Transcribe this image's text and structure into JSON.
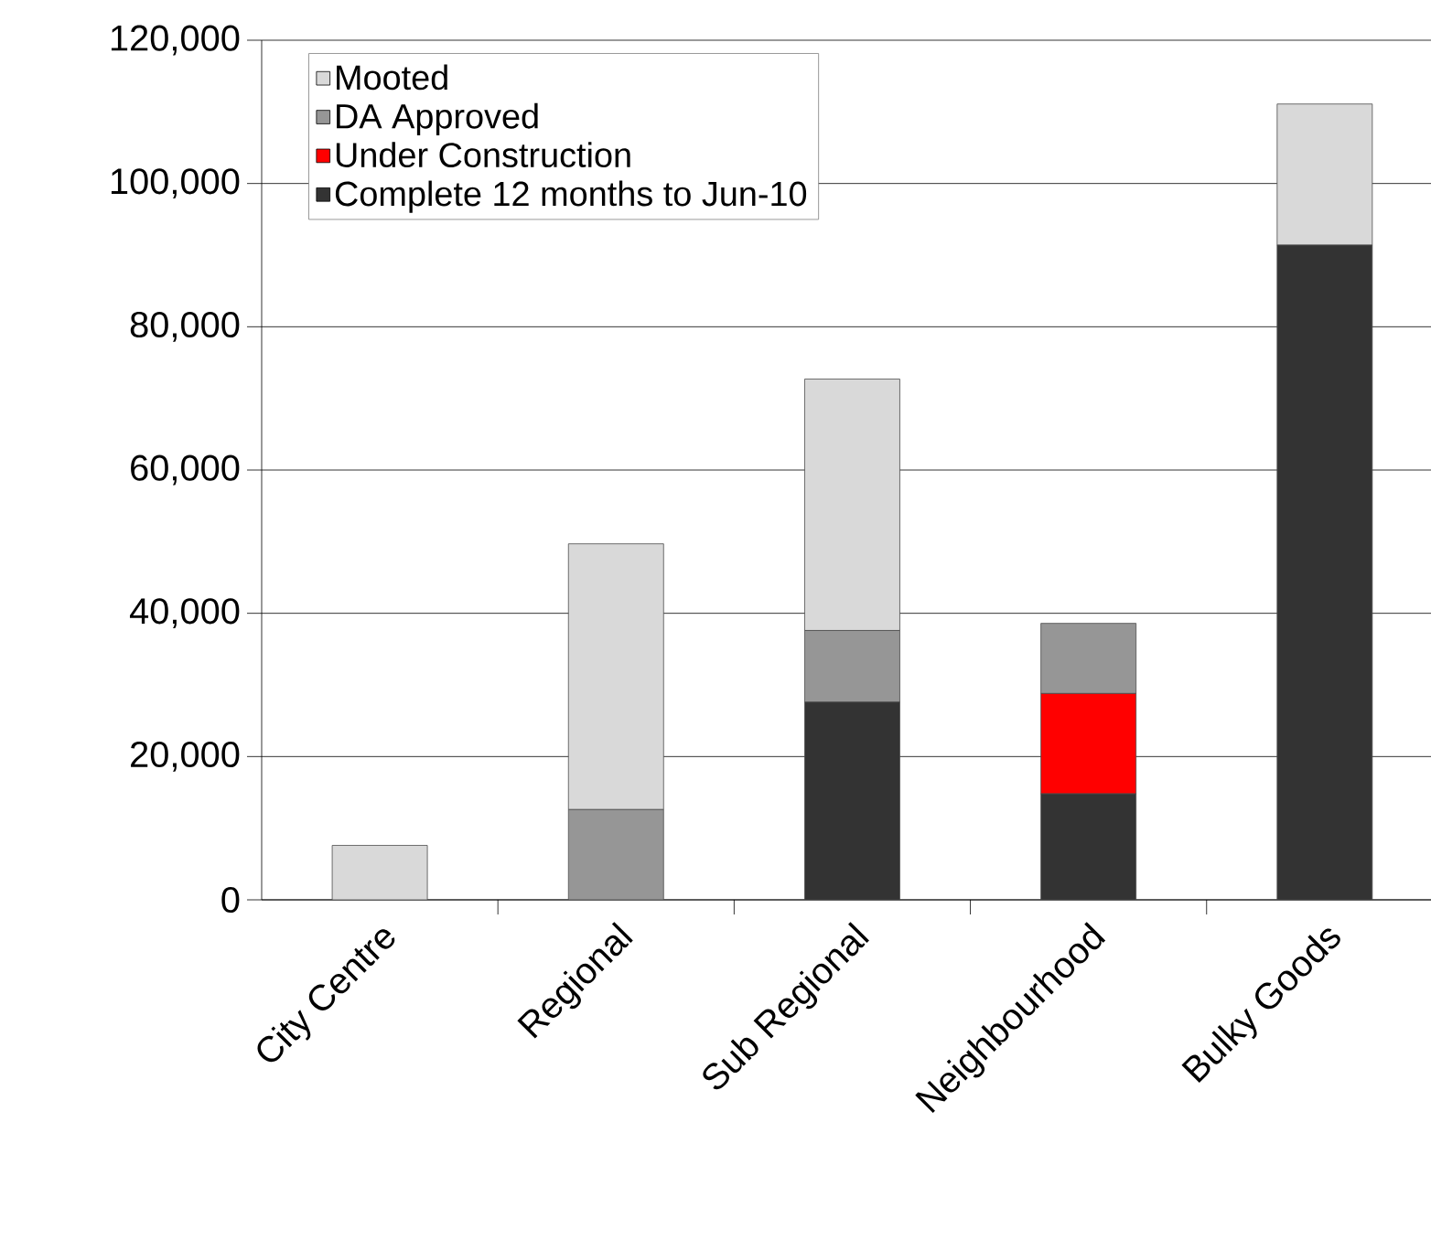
{
  "chart_data": {
    "type": "bar",
    "stacked": true,
    "categories": [
      "City Centre",
      "Regional",
      "Sub Regional",
      "Neighbourhood",
      "Bulky Goods"
    ],
    "series": [
      {
        "name": "Complete 12 months to Jun-10",
        "color": "#333333",
        "values": [
          0,
          0,
          27600,
          14800,
          91400
        ]
      },
      {
        "name": "Under Construction",
        "color": "#ff0000",
        "values": [
          0,
          0,
          0,
          14000,
          0
        ]
      },
      {
        "name": "DA Approved",
        "color": "#969696",
        "values": [
          0,
          12600,
          10000,
          9800,
          0
        ]
      },
      {
        "name": "Mooted",
        "color": "#d9d9d9",
        "values": [
          7600,
          37100,
          35100,
          0,
          19700
        ]
      }
    ],
    "ylim": [
      0,
      120000
    ],
    "yticks": [
      {
        "value": 0,
        "label": "0"
      },
      {
        "value": 20000,
        "label": "20,000"
      },
      {
        "value": 40000,
        "label": "40,000"
      },
      {
        "value": 60000,
        "label": "60,000"
      },
      {
        "value": 80000,
        "label": "80,000"
      },
      {
        "value": 100000,
        "label": "100,000"
      },
      {
        "value": 120000,
        "label": "120,000"
      }
    ],
    "grid": "y",
    "legend": "top left"
  }
}
